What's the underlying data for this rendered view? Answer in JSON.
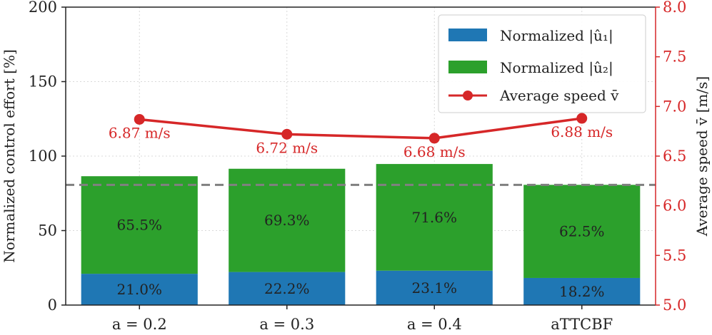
{
  "chart_data": {
    "type": "bar",
    "stacked": true,
    "categories": [
      "a = 0.2",
      "a = 0.3",
      "a = 0.4",
      "aTTCBF"
    ],
    "series": [
      {
        "name": "Normalized |û₁|",
        "values": [
          21.0,
          22.2,
          23.1,
          18.2
        ],
        "labels": [
          "21.0%",
          "22.2%",
          "23.1%",
          "18.2%"
        ]
      },
      {
        "name": "Normalized |û₂|",
        "values": [
          65.5,
          69.3,
          71.6,
          62.5
        ],
        "labels": [
          "65.5%",
          "69.3%",
          "71.6%",
          "62.5%"
        ]
      }
    ],
    "line_series": {
      "name": "Average speed v̄",
      "values": [
        6.87,
        6.72,
        6.68,
        6.88
      ],
      "labels": [
        "6.87 m/s",
        "6.72 m/s",
        "6.68 m/s",
        "6.88 m/s"
      ]
    },
    "reference_line": 80.7,
    "ylabel": "Normalized control effort [%]",
    "y2label": "Average speed v̄ [m/s]",
    "ylim": [
      0,
      200
    ],
    "y2lim": [
      5.0,
      8.0
    ],
    "yticks": [
      "0",
      "50",
      "100",
      "150",
      "200"
    ],
    "y2ticks": [
      "5.0",
      "5.5",
      "6.0",
      "6.5",
      "7.0",
      "7.5",
      "8.0"
    ],
    "grid": true,
    "legend_position": "top-right",
    "colors": {
      "u1": "#1f77b4",
      "u2": "#2ca02c",
      "speed": "#d62728",
      "reference": "#808080",
      "grid": "#d9d9d9",
      "axis": "#222222"
    }
  }
}
